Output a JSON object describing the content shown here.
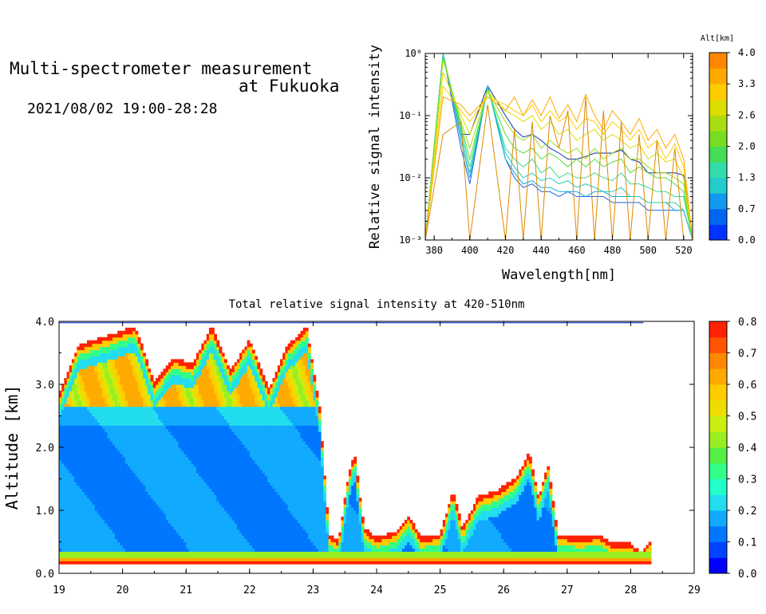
{
  "header": {
    "title_line1": "Multi-spectrometer measurement",
    "title_line2": "at Fukuoka",
    "datetime": "2021/08/02 19:00-28:28"
  },
  "chart_data": [
    {
      "type": "line",
      "name": "spectrum",
      "xlabel": "Wavelength[nm]",
      "ylabel": "Relative signal intensity",
      "xlim": [
        375,
        525
      ],
      "ylim": [
        0.001,
        1
      ],
      "yscale": "log",
      "x_ticks": [
        "380",
        "400",
        "420",
        "440",
        "460",
        "480",
        "500",
        "520"
      ],
      "y_ticks": [
        "10⁻³",
        "10⁻²",
        "10⁻¹",
        "10⁰"
      ],
      "colorbar": {
        "title": "Alt[km]",
        "ticks": [
          "0.0",
          "0.7",
          "1.3",
          "2.0",
          "2.6",
          "3.3",
          "4.0"
        ],
        "colors": [
          "#0033ff",
          "#0066ee",
          "#1199ee",
          "#22cccc",
          "#33ddaa",
          "#44dd55",
          "#77dd22",
          "#aadd11",
          "#dddd00",
          "#ffcc00",
          "#ffaa00",
          "#ff8800"
        ]
      },
      "x": [
        375,
        385,
        395,
        400,
        410,
        420,
        425,
        430,
        435,
        440,
        445,
        450,
        455,
        460,
        465,
        470,
        475,
        480,
        485,
        490,
        495,
        500,
        505,
        510,
        515,
        520,
        525
      ],
      "series": [
        {
          "color": "#1133aa",
          "values": [
            0.001,
            1.0,
            0.05,
            0.05,
            0.3,
            0.1,
            0.06,
            0.045,
            0.05,
            0.04,
            0.03,
            0.025,
            0.02,
            0.02,
            0.022,
            0.025,
            0.025,
            0.025,
            0.028,
            0.02,
            0.018,
            0.012,
            0.012,
            0.012,
            0.012,
            0.011,
            0.001
          ]
        },
        {
          "color": "#2266dd",
          "values": [
            0.001,
            1.0,
            0.03,
            0.008,
            0.3,
            0.02,
            0.01,
            0.007,
            0.008,
            0.006,
            0.006,
            0.005,
            0.006,
            0.005,
            0.005,
            0.005,
            0.005,
            0.004,
            0.004,
            0.004,
            0.004,
            0.003,
            0.003,
            0.003,
            0.003,
            0.003,
            0.001
          ]
        },
        {
          "color": "#11aadd",
          "values": [
            0.001,
            1.0,
            0.04,
            0.01,
            0.3,
            0.02,
            0.012,
            0.008,
            0.009,
            0.007,
            0.007,
            0.006,
            0.006,
            0.006,
            0.005,
            0.006,
            0.006,
            0.005,
            0.005,
            0.005,
            0.005,
            0.004,
            0.004,
            0.004,
            0.003,
            0.003,
            0.001
          ]
        },
        {
          "color": "#22ccbb",
          "values": [
            0.001,
            1.0,
            0.05,
            0.012,
            0.28,
            0.025,
            0.015,
            0.01,
            0.012,
            0.009,
            0.01,
            0.008,
            0.009,
            0.007,
            0.008,
            0.007,
            0.006,
            0.006,
            0.007,
            0.005,
            0.005,
            0.004,
            0.004,
            0.004,
            0.004,
            0.003,
            0.001
          ]
        },
        {
          "color": "#33dd88",
          "values": [
            0.001,
            0.9,
            0.06,
            0.015,
            0.28,
            0.03,
            0.02,
            0.015,
            0.02,
            0.012,
            0.015,
            0.01,
            0.012,
            0.01,
            0.01,
            0.012,
            0.01,
            0.009,
            0.012,
            0.008,
            0.008,
            0.007,
            0.006,
            0.006,
            0.005,
            0.005,
            0.001
          ]
        },
        {
          "color": "#55dd33",
          "values": [
            0.001,
            0.9,
            0.07,
            0.02,
            0.25,
            0.05,
            0.03,
            0.025,
            0.03,
            0.02,
            0.025,
            0.02,
            0.015,
            0.02,
            0.015,
            0.02,
            0.015,
            0.018,
            0.02,
            0.012,
            0.015,
            0.012,
            0.01,
            0.01,
            0.008,
            0.006,
            0.001
          ]
        },
        {
          "color": "#99dd11",
          "values": [
            0.001,
            0.8,
            0.08,
            0.03,
            0.25,
            0.08,
            0.05,
            0.04,
            0.05,
            0.03,
            0.04,
            0.03,
            0.025,
            0.03,
            0.02,
            0.03,
            0.02,
            0.025,
            0.03,
            0.02,
            0.02,
            0.015,
            0.012,
            0.012,
            0.01,
            0.008,
            0.001
          ]
        },
        {
          "color": "#dddd00",
          "values": [
            0.001,
            0.5,
            0.1,
            0.05,
            0.25,
            0.12,
            0.1,
            0.08,
            0.1,
            0.06,
            0.08,
            0.05,
            0.06,
            0.04,
            0.05,
            0.06,
            0.04,
            0.05,
            0.04,
            0.03,
            0.035,
            0.02,
            0.025,
            0.018,
            0.02,
            0.01,
            0.001
          ]
        },
        {
          "color": "#ffcc00",
          "values": [
            0.001,
            0.3,
            0.12,
            0.08,
            0.2,
            0.15,
            0.12,
            0.1,
            0.15,
            0.08,
            0.12,
            0.08,
            0.1,
            0.06,
            0.09,
            0.08,
            0.05,
            0.08,
            0.06,
            0.04,
            0.06,
            0.03,
            0.04,
            0.02,
            0.035,
            0.015,
            0.001
          ]
        },
        {
          "color": "#ffaa00",
          "values": [
            0.001,
            0.2,
            0.15,
            0.1,
            0.2,
            0.12,
            0.2,
            0.1,
            0.18,
            0.1,
            0.2,
            0.09,
            0.15,
            0.08,
            0.22,
            0.1,
            0.06,
            0.12,
            0.08,
            0.05,
            0.09,
            0.04,
            0.06,
            0.03,
            0.05,
            0.02,
            0.001
          ]
        },
        {
          "color": "#dd8800",
          "values": [
            0.001,
            0.05,
            0.08,
            0.001,
            0.15,
            0.001,
            0.06,
            0.001,
            0.08,
            0.001,
            0.1,
            0.03,
            0.12,
            0.001,
            0.2,
            0.001,
            0.12,
            0.001,
            0.08,
            0.001,
            0.05,
            0.001,
            0.04,
            0.001,
            0.03,
            0.001,
            0.001
          ]
        }
      ]
    },
    {
      "type": "heatmap",
      "name": "time-altitude",
      "title": "Total relative signal intensity at 420-510nm",
      "ylabel": "Altitude [km]",
      "xlim": [
        19,
        29
      ],
      "ylim": [
        0,
        4
      ],
      "x_ticks": [
        "19",
        "20",
        "21",
        "22",
        "23",
        "24",
        "25",
        "26",
        "27",
        "28",
        "29"
      ],
      "y_ticks": [
        "0.0",
        "1.0",
        "2.0",
        "3.0",
        "4.0"
      ],
      "colorbar": {
        "ticks": [
          "0.0",
          "0.1",
          "0.2",
          "0.3",
          "0.4",
          "0.5",
          "0.6",
          "0.7",
          "0.8"
        ],
        "range": [
          0,
          0.8
        ],
        "colors": [
          "#0000ff",
          "#0044ff",
          "#0077ff",
          "#11aaff",
          "#22ddee",
          "#22ffcc",
          "#33ff88",
          "#55ee44",
          "#99ee22",
          "#ccee11",
          "#eedd00",
          "#ffcc00",
          "#ffaa00",
          "#ff8800",
          "#ff5500",
          "#ff2200"
        ]
      },
      "cloud_top_km": [
        [
          19.0,
          2.8
        ],
        [
          19.3,
          3.6
        ],
        [
          19.6,
          3.7
        ],
        [
          19.9,
          3.8
        ],
        [
          20.2,
          3.9
        ],
        [
          20.5,
          3.0
        ],
        [
          20.8,
          3.4
        ],
        [
          21.1,
          3.3
        ],
        [
          21.4,
          3.9
        ],
        [
          21.7,
          3.2
        ],
        [
          22.0,
          3.7
        ],
        [
          22.3,
          2.9
        ],
        [
          22.6,
          3.6
        ],
        [
          22.9,
          3.9
        ],
        [
          23.1,
          2.6
        ],
        [
          23.25,
          0.6
        ],
        [
          23.4,
          0.5
        ],
        [
          23.55,
          1.5
        ],
        [
          23.65,
          1.9
        ],
        [
          23.8,
          0.7
        ],
        [
          24.0,
          0.55
        ],
        [
          24.3,
          0.65
        ],
        [
          24.5,
          0.9
        ],
        [
          24.7,
          0.55
        ],
        [
          25.0,
          0.6
        ],
        [
          25.2,
          1.3
        ],
        [
          25.35,
          0.7
        ],
        [
          25.6,
          1.2
        ],
        [
          25.9,
          1.3
        ],
        [
          26.2,
          1.5
        ],
        [
          26.4,
          1.9
        ],
        [
          26.55,
          1.2
        ],
        [
          26.7,
          1.7
        ],
        [
          26.85,
          0.6
        ],
        [
          27.2,
          0.55
        ],
        [
          27.5,
          0.6
        ],
        [
          27.7,
          0.45
        ],
        [
          28.0,
          0.45
        ],
        [
          28.15,
          0.3
        ],
        [
          28.3,
          0.5
        ]
      ]
    }
  ]
}
